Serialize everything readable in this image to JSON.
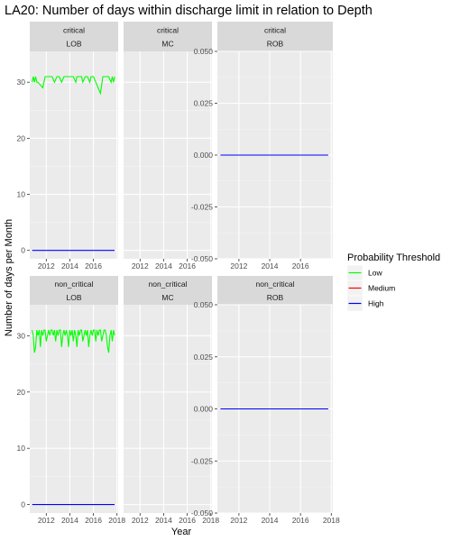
{
  "chart_data": {
    "type": "line",
    "title": "LA20: Number of days within discharge limit in relation to Depth",
    "xlabel": "Year",
    "ylabel": "Number of days per Month",
    "legend": {
      "title": "Probability Threshold",
      "placement": "right",
      "entries": [
        {
          "name": "Low",
          "color": "#00ff00"
        },
        {
          "name": "Medium",
          "color": "#ff0000"
        },
        {
          "name": "High",
          "color": "#0000ff"
        }
      ]
    },
    "facet_rows": [
      "critical",
      "non_critical"
    ],
    "facet_cols": [
      "LOB",
      "MC",
      "ROB"
    ],
    "x_ticks": [
      2012,
      2014,
      2016,
      2018
    ],
    "top_x_tick_labels": [
      "2012",
      "2014",
      "2016"
    ],
    "bottom_x_tick_labels": [
      "2012",
      "2014",
      "2016",
      "2018"
    ],
    "left_y_ticks": [
      0,
      10,
      20,
      30
    ],
    "left_y_tick_labels": [
      "0",
      "10",
      "20",
      "30"
    ],
    "right_y_ticks": [
      -0.05,
      -0.025,
      0,
      0.025,
      0.05
    ],
    "right_y_tick_labels": [
      "-0.050",
      "-0.025",
      "0.000",
      "0.025",
      "0.050"
    ],
    "left_ylim": [
      -1.5,
      35.5
    ],
    "right_ylim": [
      -0.05,
      0.05
    ],
    "xlim": [
      2010.6,
      2018.1
    ],
    "grid": true,
    "panels": [
      {
        "row": "critical",
        "col": "LOB",
        "series": [
          {
            "name": "Low",
            "color": "#00ff00",
            "x": [
              2010.8,
              2010.9,
              2011.0,
              2011.1,
              2011.2,
              2011.3,
              2011.5,
              2011.7,
              2011.9,
              2012.1,
              2012.3,
              2012.5,
              2012.7,
              2012.9,
              2013.1,
              2013.3,
              2013.5,
              2013.7,
              2013.9,
              2014.1,
              2014.3,
              2014.5,
              2014.6,
              2014.8,
              2015.0,
              2015.1,
              2015.3,
              2015.5,
              2015.7,
              2015.8,
              2016.0,
              2016.2,
              2016.4,
              2016.6,
              2016.8,
              2016.9,
              2017.1,
              2017.3,
              2017.5,
              2017.6,
              2017.7,
              2017.8
            ],
            "y": [
              30,
              31,
              30,
              31,
              30,
              30,
              29.5,
              29,
              31,
              31,
              31,
              31,
              30,
              31,
              31,
              30,
              31,
              31,
              31,
              31,
              31,
              30,
              31,
              31,
              31,
              30,
              31,
              31,
              30,
              31,
              31,
              30,
              29,
              28,
              31,
              31,
              31,
              31,
              30,
              31,
              30,
              31
            ]
          },
          {
            "name": "High",
            "color": "#0000ff",
            "x": [
              2010.8,
              2017.8
            ],
            "y": [
              0,
              0
            ]
          }
        ]
      },
      {
        "row": "critical",
        "col": "MC",
        "series": []
      },
      {
        "row": "critical",
        "col": "ROB",
        "series": [
          {
            "name": "High",
            "color": "#0000ff",
            "x": [
              2010.8,
              2017.8
            ],
            "y": [
              0,
              0
            ]
          }
        ]
      },
      {
        "row": "non_critical",
        "col": "LOB",
        "series": [
          {
            "name": "Low",
            "color": "#00ff00",
            "x": [
              2010.8,
              2010.9,
              2011.0,
              2011.1,
              2011.2,
              2011.3,
              2011.4,
              2011.5,
              2011.6,
              2011.7,
              2011.8,
              2011.9,
              2012.0,
              2012.1,
              2012.2,
              2012.3,
              2012.4,
              2012.5,
              2012.6,
              2012.7,
              2012.8,
              2012.9,
              2013.0,
              2013.1,
              2013.2,
              2013.3,
              2013.4,
              2013.5,
              2013.6,
              2013.7,
              2013.8,
              2013.9,
              2014.0,
              2014.1,
              2014.2,
              2014.3,
              2014.4,
              2014.5,
              2014.6,
              2014.7,
              2014.8,
              2014.9,
              2015.0,
              2015.1,
              2015.2,
              2015.3,
              2015.4,
              2015.5,
              2015.6,
              2015.7,
              2015.8,
              2015.9,
              2016.0,
              2016.1,
              2016.2,
              2016.3,
              2016.4,
              2016.5,
              2016.6,
              2016.7,
              2016.8,
              2016.9,
              2017.0,
              2017.1,
              2017.2,
              2017.3,
              2017.4,
              2017.5,
              2017.6,
              2017.7,
              2017.8
            ],
            "y": [
              31,
              30,
              27,
              28,
              31,
              30,
              31,
              28,
              31,
              30,
              31,
              31,
              29,
              30,
              31,
              30,
              31,
              31,
              30,
              31,
              29,
              31,
              30,
              31,
              31,
              28,
              30,
              31,
              30,
              31,
              30,
              28,
              31,
              30,
              31,
              29,
              31,
              30,
              28,
              31,
              30,
              31,
              31,
              29,
              30,
              31,
              30,
              31,
              28,
              30,
              31,
              30,
              31,
              31,
              29,
              31,
              30,
              31,
              31,
              29,
              30,
              31,
              31,
              30,
              28,
              27,
              30,
              31,
              29,
              31,
              30
            ]
          },
          {
            "name": "High",
            "color": "#0000ff",
            "x": [
              2010.8,
              2017.8
            ],
            "y": [
              0,
              0
            ]
          }
        ]
      },
      {
        "row": "non_critical",
        "col": "MC",
        "series": []
      },
      {
        "row": "non_critical",
        "col": "ROB",
        "series": [
          {
            "name": "High",
            "color": "#0000ff",
            "x": [
              2010.8,
              2017.8
            ],
            "y": [
              0,
              0
            ]
          }
        ]
      }
    ]
  }
}
